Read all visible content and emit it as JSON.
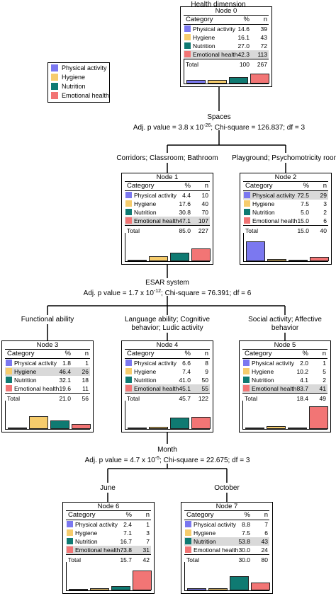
{
  "title": "Health dimension",
  "colors": {
    "physical": "#7b78f0",
    "hygiene": "#f6cc6c",
    "nutrition": "#0f7a72",
    "emotional": "#f27575"
  },
  "header": {
    "category": "Category",
    "pct": "%",
    "n": "n"
  },
  "legend": [
    {
      "key": "physical",
      "label": "Physical activity"
    },
    {
      "key": "hygiene",
      "label": "Hygiene"
    },
    {
      "key": "nutrition",
      "label": "Nutrition"
    },
    {
      "key": "emotional",
      "label": "Emotional health"
    }
  ],
  "splits": [
    {
      "variable": "Spaces",
      "stat_prefix": "Adj. p value = 3.8 x 10",
      "exp": "-26",
      "stat_suffix": "; Chi-square = 126.837; df = 3"
    },
    {
      "variable": "ESAR system",
      "stat_prefix": "Adj. p value = 1.7 x 10",
      "exp": "-12",
      "stat_suffix": "; Chi-square = 76.391; df = 6"
    },
    {
      "variable": "Month",
      "stat_prefix": "Adj. p value = 4.7 x 10",
      "exp": "-5",
      "stat_suffix": "; Chi-square = 22.675; df = 3"
    }
  ],
  "branch_labels": [
    {
      "id": "b1",
      "lines": [
        "Corridors; Classroom; Bathroom"
      ]
    },
    {
      "id": "b2",
      "lines": [
        "Playground; Psychomotricity room"
      ]
    },
    {
      "id": "b3",
      "lines": [
        "Functional ability"
      ]
    },
    {
      "id": "b4",
      "lines": [
        "Language ability; Cognitive",
        "behavior; Ludic activity"
      ]
    },
    {
      "id": "b5",
      "lines": [
        "Social activity; Affective",
        "behavior"
      ]
    },
    {
      "id": "b6",
      "lines": [
        "June"
      ]
    },
    {
      "id": "b7",
      "lines": [
        "October"
      ]
    }
  ],
  "nodes": [
    {
      "id": "Node 0",
      "rows": [
        {
          "label": "Physical activity",
          "pct": "14.6",
          "n": "39"
        },
        {
          "label": "Hygiene",
          "pct": "16.1",
          "n": "43"
        },
        {
          "label": "Nutrition",
          "pct": "27.0",
          "n": "72"
        },
        {
          "label": "Emotional health",
          "pct": "42.3",
          "n": "113"
        }
      ],
      "highlight": 3,
      "total_label": "Total",
      "total_pct": "100",
      "total_n": "267"
    },
    {
      "id": "Node 1",
      "rows": [
        {
          "label": "Physical activity",
          "pct": "4.4",
          "n": "10"
        },
        {
          "label": "Hygiene",
          "pct": "17.6",
          "n": "40"
        },
        {
          "label": "Nutrition",
          "pct": "30.8",
          "n": "70"
        },
        {
          "label": "Emotional health",
          "pct": "47.1",
          "n": "107"
        }
      ],
      "highlight": 3,
      "total_label": "Total",
      "total_pct": "85.0",
      "total_n": "227"
    },
    {
      "id": "Node 2",
      "rows": [
        {
          "label": "Physical activity",
          "pct": "72.5",
          "n": "29"
        },
        {
          "label": "Hygiene",
          "pct": "7.5",
          "n": "3"
        },
        {
          "label": "Nutrition",
          "pct": "5.0",
          "n": "2"
        },
        {
          "label": "Emotional health",
          "pct": "15.0",
          "n": "6"
        }
      ],
      "highlight": 0,
      "total_label": "Total",
      "total_pct": "15.0",
      "total_n": "40"
    },
    {
      "id": "Node 3",
      "rows": [
        {
          "label": "Physical activity",
          "pct": "1.8",
          "n": "1"
        },
        {
          "label": "Hygiene",
          "pct": "46.4",
          "n": "26"
        },
        {
          "label": "Nutrition",
          "pct": "32.1",
          "n": "18"
        },
        {
          "label": "Emotional health",
          "pct": "19.6",
          "n": "11"
        }
      ],
      "highlight": 1,
      "total_label": "Total",
      "total_pct": "21.0",
      "total_n": "56"
    },
    {
      "id": "Node 4",
      "rows": [
        {
          "label": "Physical activity",
          "pct": "6.6",
          "n": "8"
        },
        {
          "label": "Hygiene",
          "pct": "7.4",
          "n": "9"
        },
        {
          "label": "Nutrition",
          "pct": "41.0",
          "n": "50"
        },
        {
          "label": "Emotional health",
          "pct": "45.1",
          "n": "55"
        }
      ],
      "highlight": 3,
      "total_label": "Total",
      "total_pct": "45.7",
      "total_n": "122"
    },
    {
      "id": "Node 5",
      "rows": [
        {
          "label": "Physical activity",
          "pct": "2.0",
          "n": "1"
        },
        {
          "label": "Hygiene",
          "pct": "10.2",
          "n": "5"
        },
        {
          "label": "Nutrition",
          "pct": "4.1",
          "n": "2"
        },
        {
          "label": "Emotional health",
          "pct": "83.7",
          "n": "41"
        }
      ],
      "highlight": 3,
      "total_label": "Total",
      "total_pct": "18.4",
      "total_n": "49"
    },
    {
      "id": "Node 6",
      "rows": [
        {
          "label": "Physical activity",
          "pct": "2.4",
          "n": "1"
        },
        {
          "label": "Hygiene",
          "pct": "7.1",
          "n": "3"
        },
        {
          "label": "Nutrition",
          "pct": "16.7",
          "n": "7"
        },
        {
          "label": "Emotional health",
          "pct": "73.8",
          "n": "31"
        }
      ],
      "highlight": 3,
      "total_label": "Total",
      "total_pct": "15.7",
      "total_n": "42"
    },
    {
      "id": "Node 7",
      "rows": [
        {
          "label": "Physical activity",
          "pct": "8.8",
          "n": "7"
        },
        {
          "label": "Hygiene",
          "pct": "7.5",
          "n": "6"
        },
        {
          "label": "Nutrition",
          "pct": "53.8",
          "n": "43"
        },
        {
          "label": "Emotional health",
          "pct": "30.0",
          "n": "24"
        }
      ],
      "highlight": 2,
      "total_label": "Total",
      "total_pct": "30.0",
      "total_n": "80"
    }
  ]
}
